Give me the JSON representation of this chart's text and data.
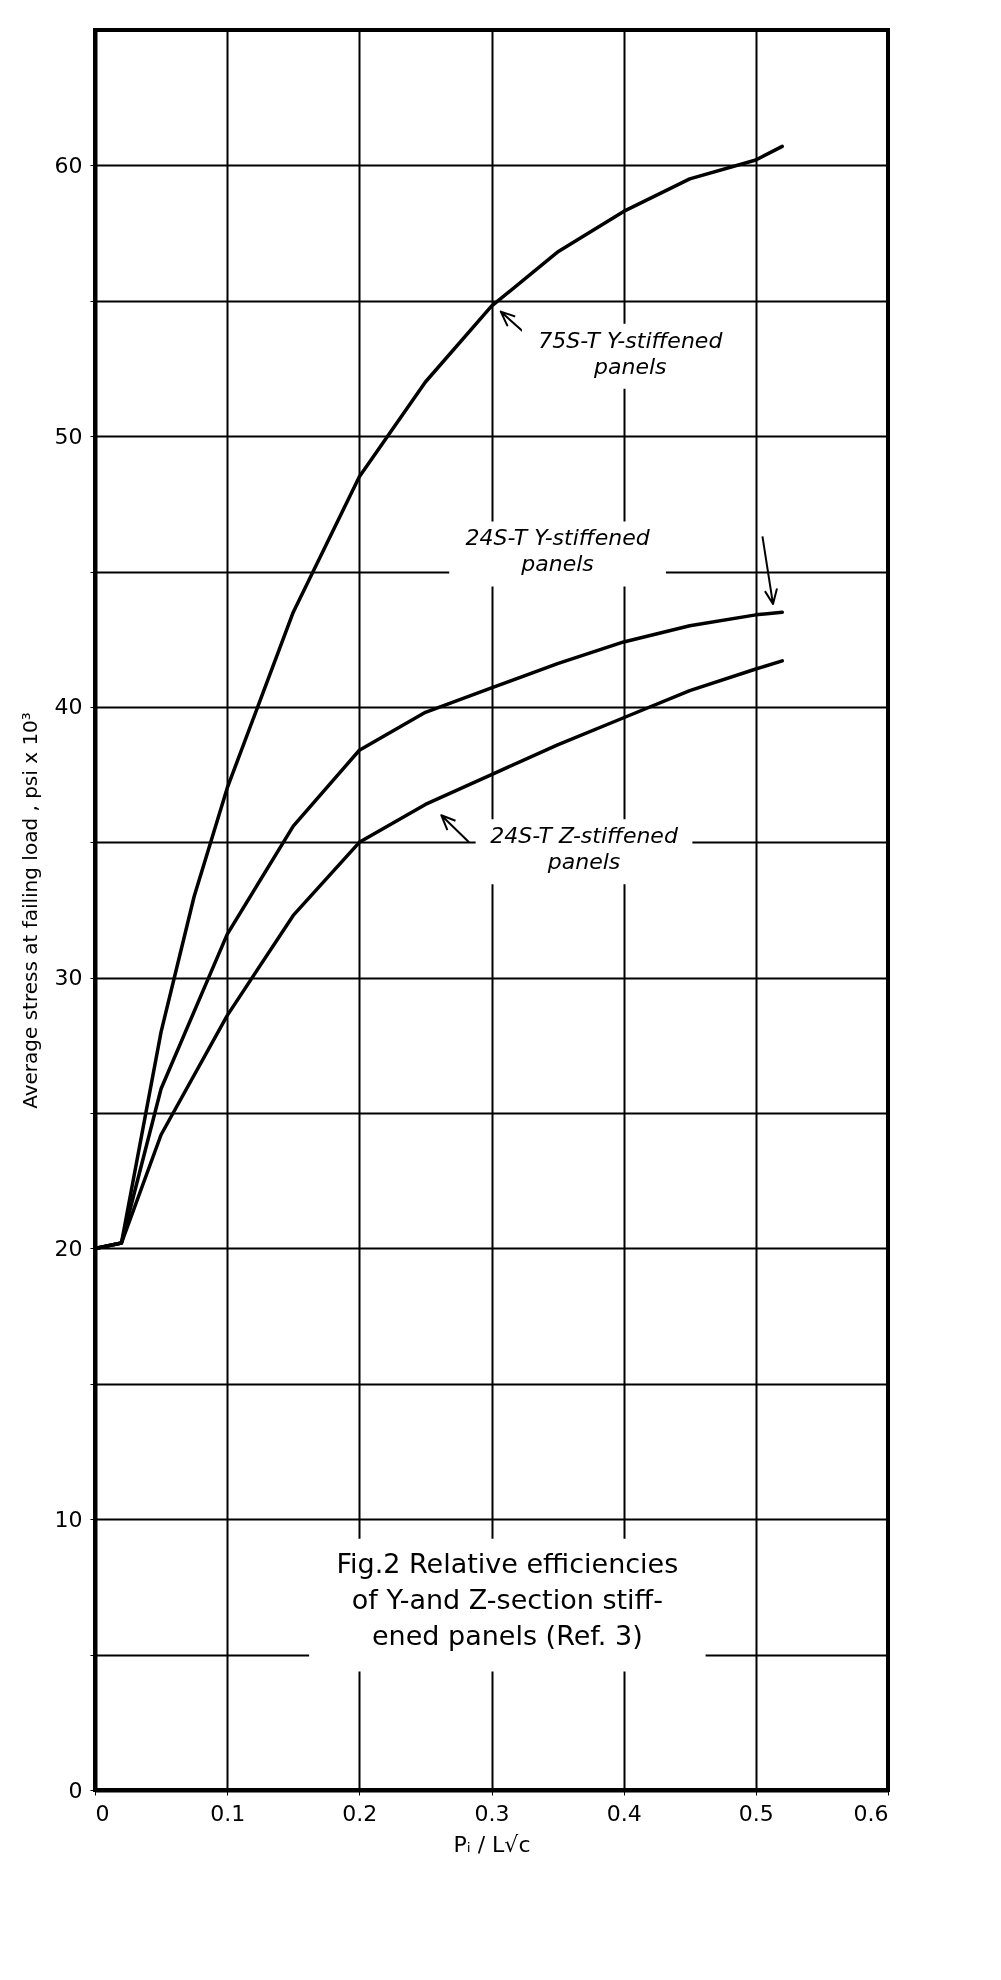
{
  "chart_data": {
    "type": "line",
    "title": "Fig.2 Relative efficiencies\nof Y-and Z-section stiff-\nened panels (Ref. 3)",
    "xlabel": "Pᵢ / L√c",
    "ylabel": "Average stress at failing load , psi x 10³",
    "xlim": [
      0,
      0.6
    ],
    "xticks": [
      0,
      {
        "value": 0.1,
        "label": "0.1"
      },
      {
        "value": 0.2,
        "label": "0.2"
      },
      {
        "value": 0.3,
        "label": "0.3"
      },
      {
        "value": 0.4,
        "label": "0.4"
      },
      {
        "value": 0.5,
        "label": "0.5"
      },
      {
        "value": 0.6,
        "label": "0.6"
      }
    ],
    "ylim": [
      0,
      65
    ],
    "yticks": [
      0,
      {
        "value": 5,
        "label": null
      },
      10,
      {
        "value": 15,
        "label": null
      },
      20,
      {
        "value": 25,
        "label": null
      },
      30,
      {
        "value": 35,
        "label": null
      },
      40,
      {
        "value": 45,
        "label": null
      },
      50,
      {
        "value": 55,
        "label": null
      },
      60
    ],
    "grid": true,
    "marker": "none",
    "line_style": "solid",
    "series": [
      {
        "name": "75S-T Y-stiffened\npanels",
        "color": "#000000",
        "x": [
          0,
          0.02,
          0.05,
          0.075,
          0.1,
          0.15,
          0.2,
          0.25,
          0.3,
          0.35,
          0.4,
          0.45,
          0.5,
          0.52
        ],
        "values": [
          20,
          20.2,
          28,
          33,
          37,
          43.5,
          48.5,
          52,
          54.8,
          56.8,
          58.3,
          59.5,
          60.2,
          60.7
        ]
      },
      {
        "name": "24S-T Y-stiffened\npanels",
        "color": "#000000",
        "x": [
          0,
          0.02,
          0.05,
          0.1,
          0.15,
          0.2,
          0.25,
          0.3,
          0.35,
          0.4,
          0.45,
          0.5,
          0.52
        ],
        "values": [
          20,
          20.2,
          25.9,
          31.6,
          35.6,
          38.4,
          39.8,
          40.7,
          41.6,
          42.4,
          43,
          43.4,
          43.5
        ]
      },
      {
        "name": "24S-T Z-stiffened\npanels",
        "color": "#000000",
        "x": [
          0,
          0.02,
          0.05,
          0.1,
          0.15,
          0.2,
          0.25,
          0.3,
          0.35,
          0.4,
          0.45,
          0.5,
          0.52
        ],
        "values": [
          20,
          20.2,
          24.2,
          28.6,
          32.3,
          35,
          36.4,
          37.5,
          38.6,
          39.6,
          40.6,
          41.4,
          41.7
        ]
      }
    ]
  }
}
